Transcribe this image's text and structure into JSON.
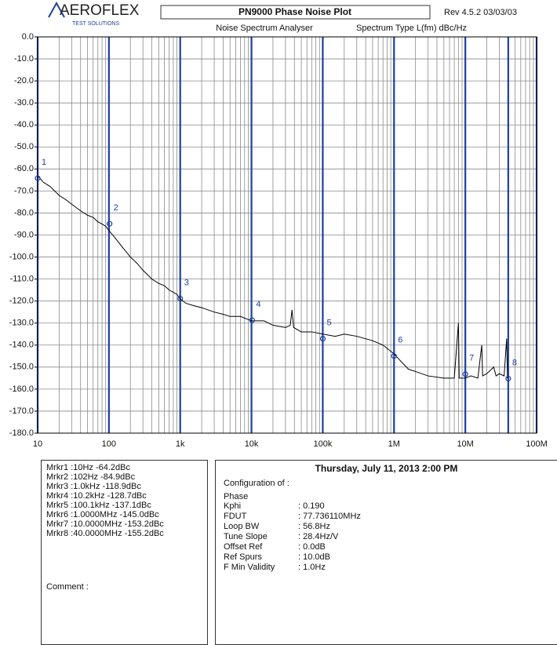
{
  "header": {
    "logo": "AEROFLEX",
    "logo_sub": "TEST SOLUTIONS",
    "title": "PN9000 Phase Noise Plot",
    "rev": "Rev 4.5.2  03/03/03",
    "analyser": "Noise Spectrum Analyser",
    "spectrum_type": "Spectrum Type  L(fm) dBc/Hz"
  },
  "chart_data": {
    "type": "line",
    "log_x": true,
    "grid": true,
    "color": "#000000",
    "major_color": "#1f3fa0",
    "xlim": [
      10,
      100000000
    ],
    "xticks": [
      10,
      100,
      {
        "value": 1000,
        "label": "1k"
      },
      {
        "value": 10000,
        "label": "10k"
      },
      {
        "value": 100000,
        "label": "100k"
      },
      {
        "value": 1000000,
        "label": "1M"
      },
      {
        "value": 10000000,
        "label": "10M"
      },
      {
        "value": 100000000,
        "label": "100M"
      }
    ],
    "minor_xticks": [
      20,
      30,
      40,
      50,
      60,
      70,
      80,
      90,
      200,
      300,
      400,
      500,
      600,
      700,
      800,
      900,
      2000,
      3000,
      4000,
      5000,
      6000,
      7000,
      8000,
      9000,
      20000,
      30000,
      40000,
      50000,
      60000,
      70000,
      80000,
      90000,
      200000,
      300000,
      400000,
      500000,
      600000,
      700000,
      800000,
      900000,
      2000000,
      3000000,
      4000000,
      5000000,
      6000000,
      7000000,
      8000000,
      9000000,
      20000000,
      30000000,
      40000000,
      50000000,
      60000000,
      70000000,
      80000000,
      90000000
    ],
    "vlines": [
      40000000
    ],
    "ylim": [
      -180,
      0
    ],
    "yticks": [
      {
        "value": 0,
        "label": "0.0"
      },
      {
        "value": -10,
        "label": "-10.0"
      },
      {
        "value": -20,
        "label": "-20.0"
      },
      {
        "value": -30,
        "label": "-30.0"
      },
      {
        "value": -40,
        "label": "-40.0"
      },
      {
        "value": -50,
        "label": "-50.0"
      },
      {
        "value": -60,
        "label": "-60.0"
      },
      {
        "value": -70,
        "label": "-70.0"
      },
      {
        "value": -80,
        "label": "-80.0"
      },
      {
        "value": -90,
        "label": "-90.0"
      },
      {
        "value": -100,
        "label": "-100.0"
      },
      {
        "value": -110,
        "label": "-110.0"
      },
      {
        "value": -120,
        "label": "-120.0"
      },
      {
        "value": -130,
        "label": "-130.0"
      },
      {
        "value": -140,
        "label": "-140.0"
      },
      {
        "value": -150,
        "label": "-150.0"
      },
      {
        "value": -160,
        "label": "-160.0"
      },
      {
        "value": -170,
        "label": "-170.0"
      },
      {
        "value": -180,
        "label": "-180.0"
      }
    ],
    "x": [
      10,
      12,
      15,
      20,
      25,
      30,
      40,
      50,
      60,
      70,
      80,
      90,
      100,
      120,
      150,
      200,
      250,
      300,
      400,
      500,
      600,
      700,
      800,
      900,
      1000,
      1200,
      1500,
      2000,
      3000,
      4000,
      5000,
      7000,
      10000,
      15000,
      20000,
      30000,
      35000,
      37000,
      39000,
      50000,
      70000,
      100000,
      150000,
      200000,
      300000,
      500000,
      700000,
      1000000,
      1300000,
      1600000,
      2000000,
      3000000,
      5000000,
      7000000,
      8000000,
      8200000,
      10000000,
      12000000,
      15000000,
      17000000,
      17500000,
      20000000,
      25000000,
      27000000,
      30000000,
      35000000,
      38000000,
      39000000,
      40000000
    ],
    "values": [
      -63,
      -66,
      -68,
      -72,
      -74,
      -76,
      -79,
      -81,
      -82,
      -84,
      -85,
      -86,
      -88,
      -91,
      -95,
      -100,
      -103,
      -106,
      -110,
      -112,
      -113,
      -115,
      -116,
      -117,
      -119,
      -121,
      -122,
      -123,
      -125,
      -126,
      -127,
      -127,
      -129,
      -129,
      -131,
      -132,
      -131,
      -124,
      -132,
      -134,
      -134,
      -135,
      -136,
      -135,
      -136,
      -138,
      -140,
      -144,
      -148,
      -151,
      -152,
      -154,
      -155,
      -155,
      -130,
      -155,
      -155,
      -154,
      -155,
      -140,
      -154,
      -153,
      -150,
      -154,
      -153,
      -154,
      -137,
      -155,
      -155
    ],
    "markers": {
      "labels": [
        "1",
        "2",
        "3",
        "4",
        "5",
        "6",
        "7",
        "8"
      ],
      "x": [
        10,
        102,
        1000,
        10200,
        100100,
        1000000,
        10000000,
        40000000
      ],
      "values": [
        -64.2,
        -84.9,
        -118.9,
        -128.7,
        -137.1,
        -145.0,
        -153.2,
        -155.2
      ]
    }
  },
  "readout": {
    "markers": [
      "Mrkr1 :10Hz  -64.2dBc",
      "Mrkr2 :102Hz  -84.9dBc",
      "Mrkr3 :1.0kHz  -118.9dBc",
      "Mrkr4 :10.2kHz  -128.7dBc",
      "Mrkr5 :100.1kHz  -137.1dBc",
      "Mrkr6 :1.0000MHz  -145.0dBc",
      "Mrkr7 :10.0000MHz  -153.2dBc",
      "Mrkr8 :40.0000MHz  -155.2dBc"
    ],
    "comment": "Comment :"
  },
  "config": {
    "date": "Thursday, July 11, 2013     2:00 PM",
    "configuration": "Configuration of :",
    "mode": "Phase",
    "rows": [
      [
        "Kphi",
        ": 0.190"
      ],
      [
        "FDUT",
        ": 77.736110MHz"
      ],
      [
        "Loop BW",
        ": 56.8Hz"
      ],
      [
        "Tune Slope",
        ": 28.4Hz/V"
      ],
      [
        "Offset Ref",
        ": 0.0dB"
      ],
      [
        "Ref Spurs",
        ": 10.0dB"
      ],
      [
        "F Min Validity",
        ": 1.0Hz"
      ]
    ]
  }
}
